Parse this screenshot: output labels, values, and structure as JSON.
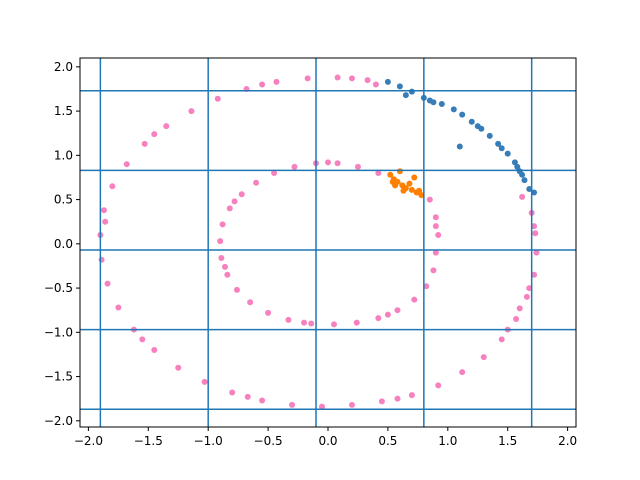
{
  "chart_data": {
    "type": "scatter",
    "title": "",
    "xlabel": "",
    "ylabel": "",
    "xlim": [
      -2.07,
      2.07
    ],
    "ylim": [
      -2.07,
      2.1
    ],
    "x_ticks": [
      -2.0,
      -1.5,
      -1.0,
      -0.5,
      0.0,
      0.5,
      1.0,
      1.5,
      2.0
    ],
    "x_tick_labels": [
      "−2.0",
      "−1.5",
      "−1.0",
      "−0.5",
      "0.0",
      "0.5",
      "1.0",
      "1.5",
      "2.0"
    ],
    "y_ticks": [
      -2.0,
      -1.5,
      -1.0,
      -0.5,
      0.0,
      0.5,
      1.0,
      1.5,
      2.0
    ],
    "y_tick_labels": [
      "−2.0",
      "−1.5",
      "−1.0",
      "−0.5",
      "0.0",
      "0.5",
      "1.0",
      "1.5",
      "2.0"
    ],
    "grid": false,
    "legend": "none",
    "vertical_lines_x": [
      -1.9,
      -1.0,
      -0.1,
      0.8,
      1.7
    ],
    "horizontal_lines_y": [
      1.73,
      0.83,
      -0.07,
      -0.97,
      -1.87
    ],
    "line_color": "#1f77b4",
    "series": [
      {
        "color": "#f781bf",
        "points": [
          [
            1.62,
            0.53
          ],
          [
            1.7,
            0.35
          ],
          [
            1.73,
            0.12
          ],
          [
            1.74,
            -0.1
          ],
          [
            1.72,
            -0.35
          ],
          [
            1.66,
            -0.6
          ],
          [
            1.57,
            -0.85
          ],
          [
            1.45,
            -1.08
          ],
          [
            1.3,
            -1.28
          ],
          [
            1.12,
            -1.45
          ],
          [
            0.92,
            -1.6
          ],
          [
            0.7,
            -1.71
          ],
          [
            0.45,
            -1.78
          ],
          [
            0.2,
            -1.82
          ],
          [
            -0.05,
            -1.84
          ],
          [
            -0.3,
            -1.82
          ],
          [
            -0.55,
            -1.77
          ],
          [
            -0.8,
            -1.68
          ],
          [
            -1.03,
            -1.56
          ],
          [
            -1.25,
            -1.4
          ],
          [
            -1.45,
            -1.2
          ],
          [
            -1.62,
            -0.97
          ],
          [
            -1.75,
            -0.72
          ],
          [
            -1.84,
            -0.45
          ],
          [
            -1.89,
            -0.18
          ],
          [
            -1.9,
            0.1
          ],
          [
            -1.87,
            0.38
          ],
          [
            -1.8,
            0.65
          ],
          [
            -1.68,
            0.9
          ],
          [
            -1.53,
            1.13
          ],
          [
            -1.35,
            1.33
          ],
          [
            -1.14,
            1.5
          ],
          [
            -0.92,
            1.64
          ],
          [
            -0.68,
            1.75
          ],
          [
            -0.43,
            1.83
          ],
          [
            -0.17,
            1.87
          ],
          [
            0.08,
            1.88
          ],
          [
            0.33,
            1.85
          ],
          [
            0.4,
            1.8
          ],
          [
            1.72,
            0.2
          ],
          [
            1.68,
            -0.5
          ],
          [
            1.5,
            -0.97
          ],
          [
            0.58,
            -1.75
          ],
          [
            -0.67,
            -1.73
          ],
          [
            -1.55,
            -1.08
          ],
          [
            -1.86,
            0.25
          ],
          [
            -1.45,
            1.24
          ],
          [
            -0.55,
            1.8
          ],
          [
            0.2,
            1.87
          ],
          [
            1.6,
            -0.73
          ],
          [
            0.92,
            0.1
          ],
          [
            0.9,
            0.3
          ],
          [
            0.85,
            0.5
          ],
          [
            0.9,
            -0.1
          ],
          [
            0.88,
            -0.3
          ],
          [
            0.82,
            -0.48
          ],
          [
            0.72,
            -0.63
          ],
          [
            0.58,
            -0.75
          ],
          [
            0.42,
            -0.84
          ],
          [
            0.24,
            -0.89
          ],
          [
            0.05,
            -0.91
          ],
          [
            -0.14,
            -0.9
          ],
          [
            -0.33,
            -0.86
          ],
          [
            -0.5,
            -0.78
          ],
          [
            -0.65,
            -0.66
          ],
          [
            -0.76,
            -0.52
          ],
          [
            -0.84,
            -0.35
          ],
          [
            -0.89,
            -0.16
          ],
          [
            -0.9,
            0.03
          ],
          [
            -0.88,
            0.22
          ],
          [
            -0.82,
            0.4
          ],
          [
            -0.72,
            0.56
          ],
          [
            -0.6,
            0.69
          ],
          [
            -0.45,
            0.8
          ],
          [
            -0.28,
            0.87
          ],
          [
            -0.1,
            0.91
          ],
          [
            0.08,
            0.91
          ],
          [
            0.25,
            0.87
          ],
          [
            0.42,
            0.8
          ],
          [
            0.9,
            0.2
          ],
          [
            -0.86,
            -0.26
          ],
          [
            -0.2,
            -0.89
          ],
          [
            0.5,
            -0.8
          ],
          [
            -0.78,
            0.48
          ],
          [
            0.0,
            0.92
          ]
        ]
      },
      {
        "color": "#377eb8",
        "points": [
          [
            0.5,
            1.83
          ],
          [
            0.6,
            1.78
          ],
          [
            0.7,
            1.72
          ],
          [
            0.8,
            1.65
          ],
          [
            0.88,
            1.6
          ],
          [
            0.95,
            1.58
          ],
          [
            1.05,
            1.52
          ],
          [
            1.12,
            1.46
          ],
          [
            1.2,
            1.38
          ],
          [
            1.28,
            1.3
          ],
          [
            1.35,
            1.22
          ],
          [
            1.42,
            1.13
          ],
          [
            1.5,
            1.02
          ],
          [
            1.56,
            0.92
          ],
          [
            1.6,
            0.82
          ],
          [
            1.64,
            0.72
          ],
          [
            1.68,
            0.62
          ],
          [
            1.72,
            0.58
          ],
          [
            1.1,
            1.1
          ],
          [
            1.25,
            1.33
          ],
          [
            0.65,
            1.68
          ],
          [
            1.45,
            1.08
          ],
          [
            1.58,
            0.87
          ],
          [
            0.85,
            1.62
          ],
          [
            1.62,
            0.78
          ]
        ]
      },
      {
        "color": "#ff7f00",
        "points": [
          [
            0.52,
            0.78
          ],
          [
            0.55,
            0.73
          ],
          [
            0.58,
            0.7
          ],
          [
            0.62,
            0.66
          ],
          [
            0.65,
            0.63
          ],
          [
            0.7,
            0.61
          ],
          [
            0.74,
            0.58
          ],
          [
            0.78,
            0.55
          ],
          [
            0.6,
            0.82
          ],
          [
            0.56,
            0.66
          ],
          [
            0.68,
            0.68
          ],
          [
            0.72,
            0.75
          ],
          [
            0.63,
            0.6
          ],
          [
            0.76,
            0.6
          ],
          [
            0.54,
            0.7
          ]
        ]
      }
    ]
  }
}
